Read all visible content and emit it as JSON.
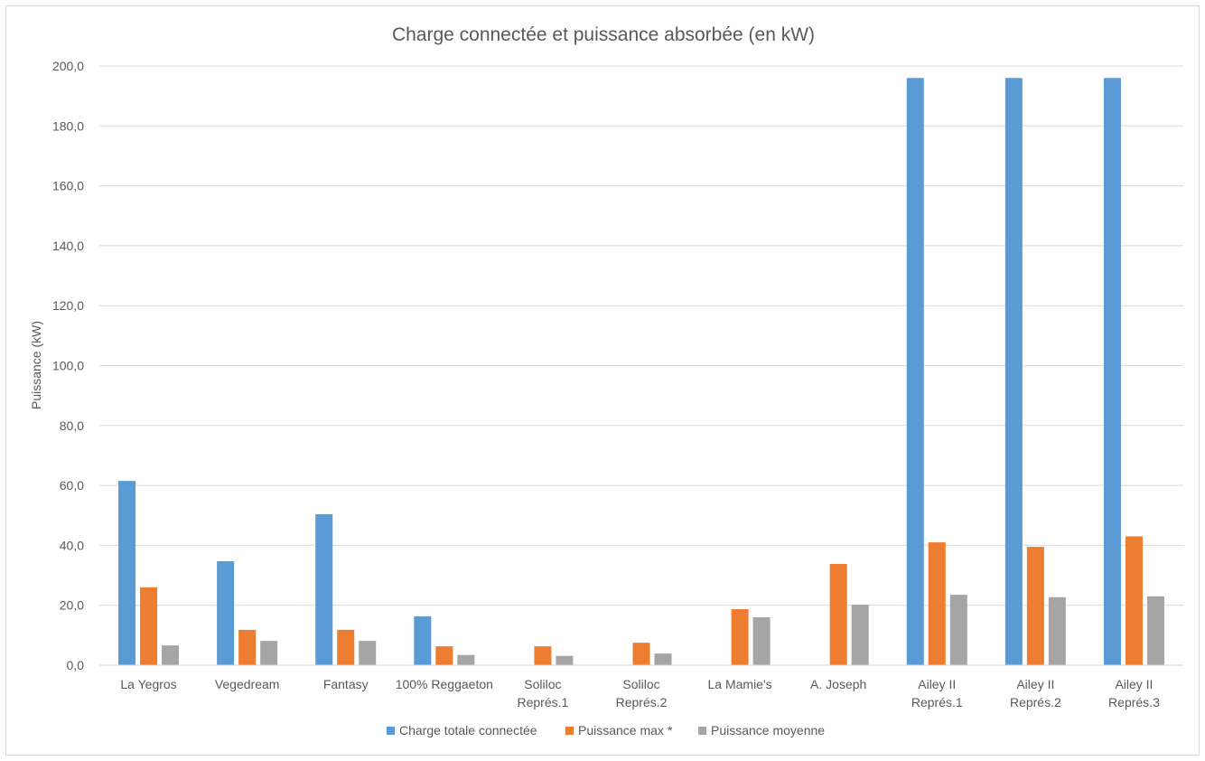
{
  "chart_data": {
    "type": "bar",
    "title": "Charge connectée et puissance absorbée (en kW)",
    "xlabel": "",
    "ylabel": "Puissance (kW)",
    "ylim": [
      0,
      200
    ],
    "yticks": [
      0,
      20,
      40,
      60,
      80,
      100,
      120,
      140,
      160,
      180,
      200
    ],
    "ytick_labels": [
      "0,0",
      "20,0",
      "40,0",
      "60,0",
      "80,0",
      "100,0",
      "120,0",
      "140,0",
      "160,0",
      "180,0",
      "200,0"
    ],
    "grid": true,
    "legend_position": "bottom",
    "categories": [
      [
        "La Yegros"
      ],
      [
        "Vegedream"
      ],
      [
        "Fantasy"
      ],
      [
        "100% Reggaeton"
      ],
      [
        "Soliloc",
        "Représ.1"
      ],
      [
        "Soliloc",
        "Représ.2"
      ],
      [
        "La Mamie's"
      ],
      [
        "A. Joseph"
      ],
      [
        "Ailey II",
        "Représ.1"
      ],
      [
        "Ailey II",
        "Représ.2"
      ],
      [
        "Ailey II",
        "Représ.3"
      ]
    ],
    "series": [
      {
        "name": "Charge totale connectée",
        "color": "#5b9bd5",
        "values": [
          61.5,
          34.7,
          50.4,
          16.3,
          null,
          null,
          null,
          null,
          196.0,
          196.0,
          196.0
        ]
      },
      {
        "name": "Puissance max *",
        "color": "#ed7d31",
        "values": [
          26.0,
          11.8,
          11.8,
          6.3,
          6.3,
          7.5,
          18.7,
          33.8,
          41.0,
          39.5,
          43.0
        ]
      },
      {
        "name": "Puissance moyenne",
        "color": "#a5a5a5",
        "values": [
          6.6,
          8.1,
          8.1,
          3.4,
          3.1,
          3.9,
          16.0,
          20.2,
          23.5,
          22.7,
          23.0
        ]
      }
    ]
  }
}
